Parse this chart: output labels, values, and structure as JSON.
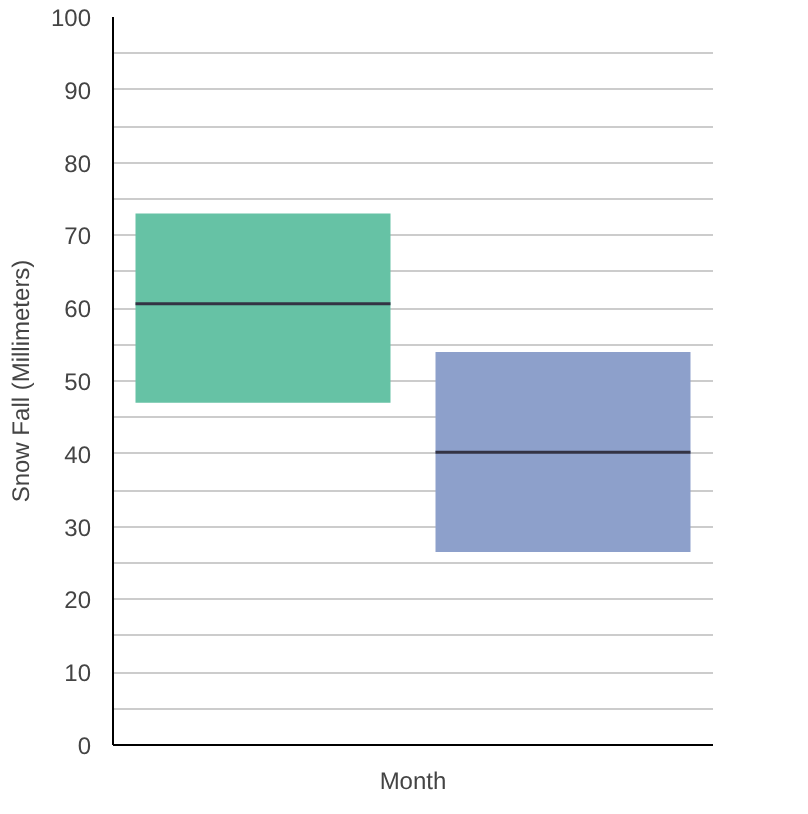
{
  "chart_data": {
    "type": "box",
    "ylabel": "Snow Fall (Millimeters)",
    "xlabel": "Month",
    "categories": [
      null,
      null
    ],
    "series": [
      {
        "color": "#66c2a5",
        "boxes": [
          {
            "low": 47,
            "q1": 47,
            "median": 60.6,
            "q3": 73,
            "high": 73
          },
          null
        ]
      },
      {
        "color": "#8da0cb",
        "boxes": [
          null,
          {
            "low": 26.5,
            "q1": 26.5,
            "median": 40.2,
            "q3": 54,
            "high": 54
          }
        ]
      }
    ],
    "ylim": [
      0,
      100
    ],
    "yticks": [
      0,
      {
        "value": 5,
        "label": null
      },
      10,
      {
        "value": 15,
        "label": null
      },
      20,
      {
        "value": 25,
        "label": null
      },
      30,
      {
        "value": 35,
        "label": null
      },
      40,
      {
        "value": 45,
        "label": null
      },
      50,
      {
        "value": 55,
        "label": null
      },
      60,
      {
        "value": 65,
        "label": null
      },
      70,
      {
        "value": 75,
        "label": null
      },
      80,
      {
        "value": 85,
        "label": null
      },
      90,
      {
        "value": 95,
        "label": null
      },
      100
    ],
    "grid": "y"
  }
}
